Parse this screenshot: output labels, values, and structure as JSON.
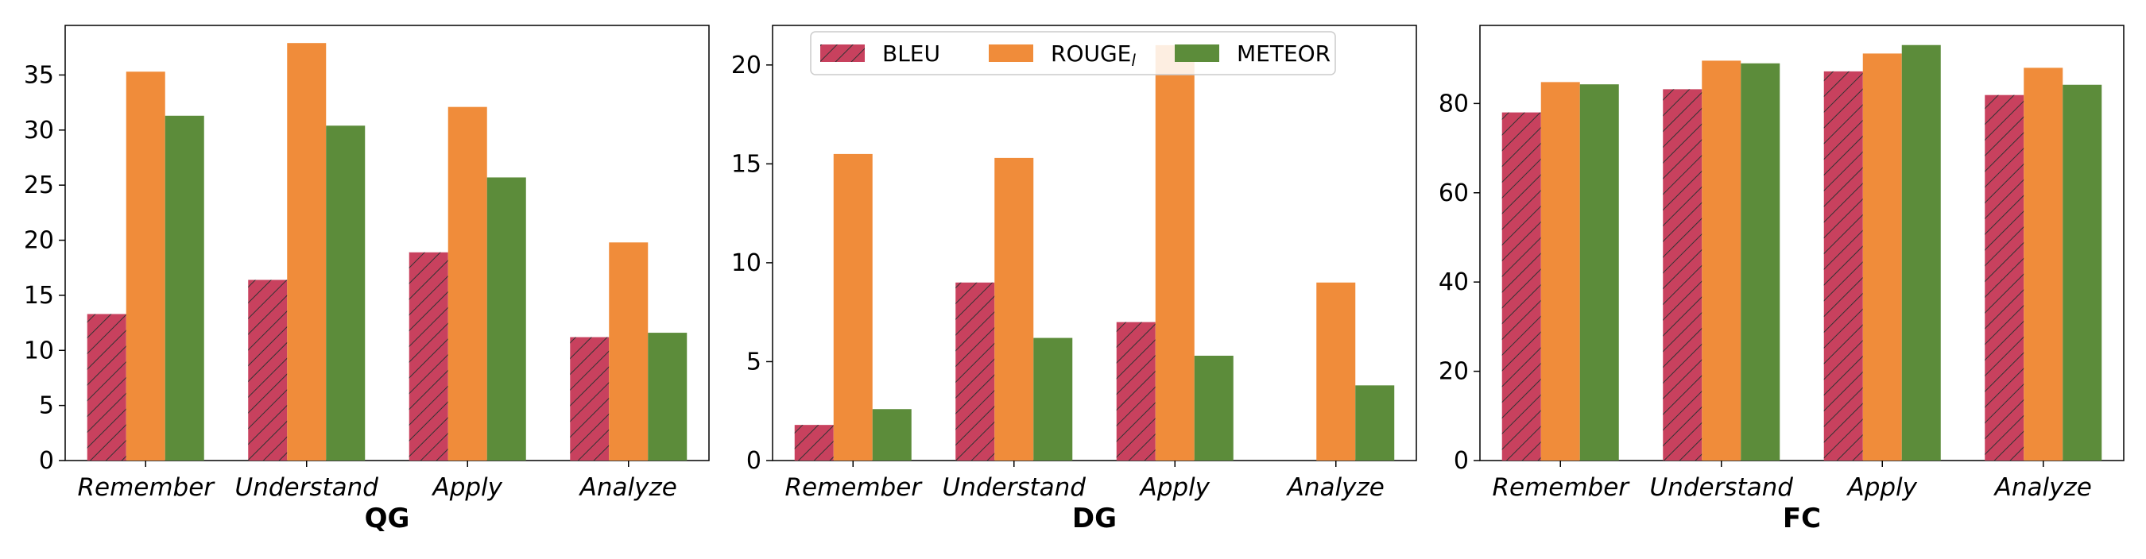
{
  "colors": {
    "BLEU": "#c8415e",
    "ROUGE": "#f08c3a",
    "METEOR": "#5c8c3a",
    "hatch": "#333333",
    "axis": "#000000"
  },
  "legend": {
    "panel": 1,
    "placement": "top-center",
    "entries": [
      {
        "key": "BLEU",
        "label": "BLEU",
        "sub": "",
        "hatch": true
      },
      {
        "key": "ROUGE",
        "label": "ROUGE",
        "sub": "l",
        "hatch": false
      },
      {
        "key": "METEOR",
        "label": "METEOR",
        "sub": "",
        "hatch": false
      }
    ]
  },
  "chart_data": [
    {
      "type": "bar",
      "xlabel": "QG",
      "categories": [
        "Remember",
        "Understand",
        "Apply",
        "Analyze"
      ],
      "ylim": [
        0,
        39.5
      ],
      "yticks": [
        0,
        5,
        10,
        15,
        20,
        25,
        30,
        35
      ],
      "series": [
        {
          "name": "BLEU",
          "values": [
            13.3,
            16.4,
            18.9,
            11.2
          ]
        },
        {
          "name": "ROUGE_l",
          "values": [
            35.3,
            37.9,
            32.1,
            19.8
          ]
        },
        {
          "name": "METEOR",
          "values": [
            31.3,
            30.4,
            25.7,
            11.6
          ]
        }
      ]
    },
    {
      "type": "bar",
      "xlabel": "DG",
      "categories": [
        "Remember",
        "Understand",
        "Apply",
        "Analyze"
      ],
      "ylim": [
        0,
        22
      ],
      "yticks": [
        0,
        5,
        10,
        15,
        20
      ],
      "series": [
        {
          "name": "BLEU",
          "values": [
            1.8,
            9.0,
            7.0,
            0
          ]
        },
        {
          "name": "ROUGE_l",
          "values": [
            15.5,
            15.3,
            21.0,
            9.0
          ]
        },
        {
          "name": "METEOR",
          "values": [
            2.6,
            6.2,
            5.3,
            3.8
          ]
        }
      ]
    },
    {
      "type": "bar",
      "xlabel": "FC",
      "categories": [
        "Remember",
        "Understand",
        "Apply",
        "Analyze"
      ],
      "ylim": [
        0,
        97.5
      ],
      "yticks": [
        0,
        20,
        40,
        60,
        80
      ],
      "series": [
        {
          "name": "BLEU",
          "values": [
            78.0,
            83.2,
            87.2,
            81.9
          ]
        },
        {
          "name": "ROUGE_l",
          "values": [
            84.8,
            89.6,
            91.2,
            88.0
          ]
        },
        {
          "name": "METEOR",
          "values": [
            84.3,
            89.0,
            93.1,
            84.2
          ]
        }
      ]
    }
  ]
}
